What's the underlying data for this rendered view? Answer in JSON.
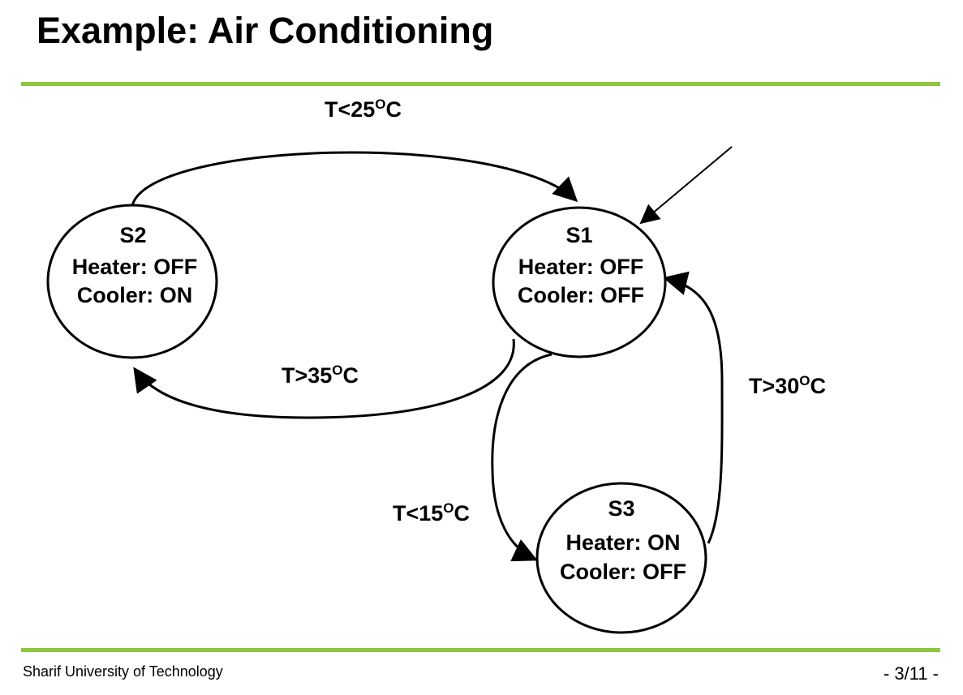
{
  "slide": {
    "title": "Example: Air Conditioning",
    "footer_left": "Sharif University of Technology",
    "page_indicator": "-  3/11 -",
    "accent_color": "#8dc63f"
  },
  "states": {
    "s1": {
      "name": "S1",
      "heater": "Heater: OFF",
      "cooler": "Cooler: OFF"
    },
    "s2": {
      "name": "S2",
      "heater": "Heater: OFF",
      "cooler": "Cooler: ON"
    },
    "s3": {
      "name": "S3",
      "heater": "Heater: ON",
      "cooler": "Cooler: OFF"
    }
  },
  "transitions": {
    "s2_to_s1": {
      "pre": "T<25",
      "sup": "O",
      "post": "C"
    },
    "s1_to_s2": {
      "pre": "T>35",
      "sup": "O",
      "post": "C"
    },
    "s1_to_s3": {
      "pre": "T<15",
      "sup": "O",
      "post": "C"
    },
    "s3_to_s1": {
      "pre": "T>30",
      "sup": "O",
      "post": "C"
    }
  }
}
